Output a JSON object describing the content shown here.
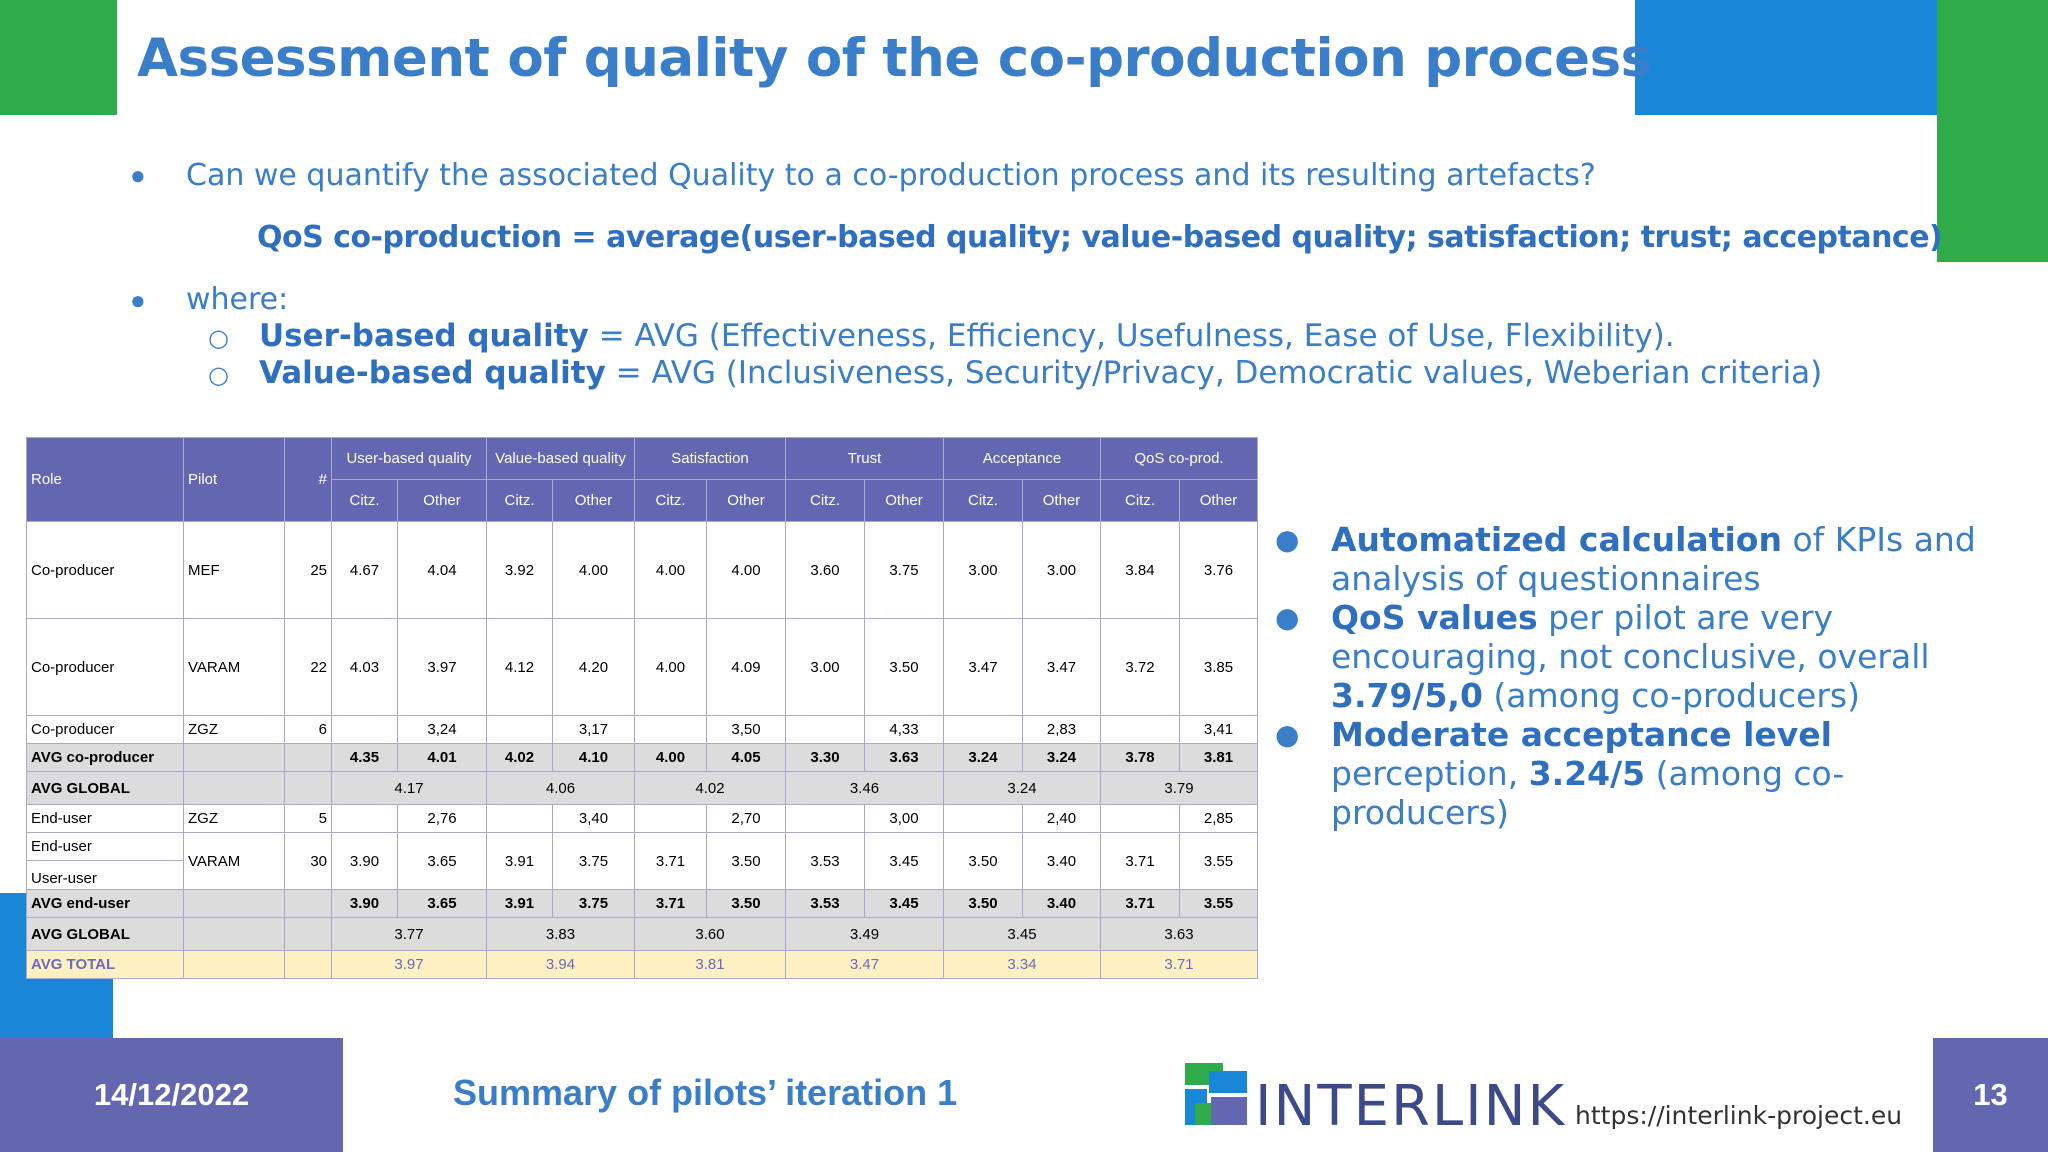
{
  "title": "Assessment of quality of the co-production process",
  "bullets": {
    "question": "Can we quantify the associated Quality to a co-production process and its resulting artefacts?",
    "formula": "QoS co-production =  average(user-based quality; value-based quality; satisfaction; trust; acceptance)",
    "where": "where:",
    "sub1_bold": "User-based quality",
    "sub1_rest": " = AVG (Effectiveness, Efficiency, Usefulness, Ease of Use, Flexibility).",
    "sub2_bold": "Value-based quality",
    "sub2_rest": " = AVG (Inclusiveness, Security/Privacy, Democratic values, Weberian criteria)"
  },
  "table": {
    "headers": {
      "role": "Role",
      "pilot": "Pilot",
      "n": "#",
      "groups": [
        "User-based quality",
        "Value-based quality",
        "Satisfaction",
        "Trust",
        "Acceptance",
        "QoS co-prod."
      ],
      "sub_citz": "Citz.",
      "sub_other": "Other"
    },
    "rows": [
      {
        "role": "Co-producer",
        "pilot": "MEF",
        "n": "25",
        "v": [
          "4.67",
          "4.04",
          "3.92",
          "4.00",
          "4.00",
          "4.00",
          "3.60",
          "3.75",
          "3.00",
          "3.00",
          "3.84",
          "3.76"
        ]
      },
      {
        "role": "Co-producer",
        "pilot": "VARAM",
        "n": "22",
        "v": [
          "4.03",
          "3.97",
          "4.12",
          "4.20",
          "4.00",
          "4.09",
          "3.00",
          "3.50",
          "3.47",
          "3.47",
          "3.72",
          "3.85"
        ]
      },
      {
        "role": "Co-producer",
        "pilot": "ZGZ",
        "n": "6",
        "v": [
          "",
          "3,24",
          "",
          "3,17",
          "",
          "3,50",
          "",
          "4,33",
          "",
          "2,83",
          "",
          "3,41"
        ]
      },
      {
        "role": "AVG co-producer",
        "pilot": "",
        "n": "",
        "v": [
          "4.35",
          "4.01",
          "4.02",
          "4.10",
          "4.00",
          "4.05",
          "3.30",
          "3.63",
          "3.24",
          "3.24",
          "3.78",
          "3.81"
        ]
      },
      {
        "role": "AVG GLOBAL",
        "g": [
          "4.17",
          "4.06",
          "4.02",
          "3.46",
          "3.24",
          "3.79"
        ]
      },
      {
        "role": "End-user",
        "pilot": "ZGZ",
        "n": "5",
        "v": [
          "",
          "2,76",
          "",
          "3,40",
          "",
          "2,70",
          "",
          "3,00",
          "",
          "2,40",
          "",
          "2,85"
        ]
      },
      {
        "role": "End-user",
        "role2": "User-user",
        "pilot": "VARAM",
        "n": "30",
        "v": [
          "3.90",
          "3.65",
          "3.91",
          "3.75",
          "3.71",
          "3.50",
          "3.53",
          "3.45",
          "3.50",
          "3.40",
          "3.71",
          "3.55"
        ]
      },
      {
        "role": "AVG end-user",
        "pilot": "",
        "n": "",
        "v": [
          "3.90",
          "3.65",
          "3.91",
          "3.75",
          "3.71",
          "3.50",
          "3.53",
          "3.45",
          "3.50",
          "3.40",
          "3.71",
          "3.55"
        ]
      },
      {
        "role": "AVG GLOBAL",
        "g": [
          "3.77",
          "3.83",
          "3.60",
          "3.49",
          "3.45",
          "3.63"
        ]
      },
      {
        "role": "AVG TOTAL",
        "g": [
          "3.97",
          "3.94",
          "3.81",
          "3.47",
          "3.34",
          "3.71"
        ]
      }
    ]
  },
  "right": {
    "b1_bold": "Automatized calculation",
    "b1_rest": " of KPIs and analysis of questionnaires",
    "b2_bold": "QoS values",
    "b2_rest": " per pilot are very encouraging, not conclusive, overall ",
    "b2_bold2": "3.79/5,0",
    "b2_rest2": " (among co-producers)",
    "b3_bold": "Moderate acceptance level",
    "b3_rest": " perception, ",
    "b3_bold2": "3.24/5",
    "b3_rest2": " (among co-producers)"
  },
  "footer": {
    "date": "14/12/2022",
    "summary": "Summary of pilots’ iteration 1",
    "logo": "INTERLINK",
    "url": "https://interlink-project.eu",
    "page": "13"
  },
  "colors": {
    "blue": "#3a7dc9",
    "green": "#2fab4a",
    "accent_blue": "#1a87d6",
    "purple": "#6367b0"
  }
}
